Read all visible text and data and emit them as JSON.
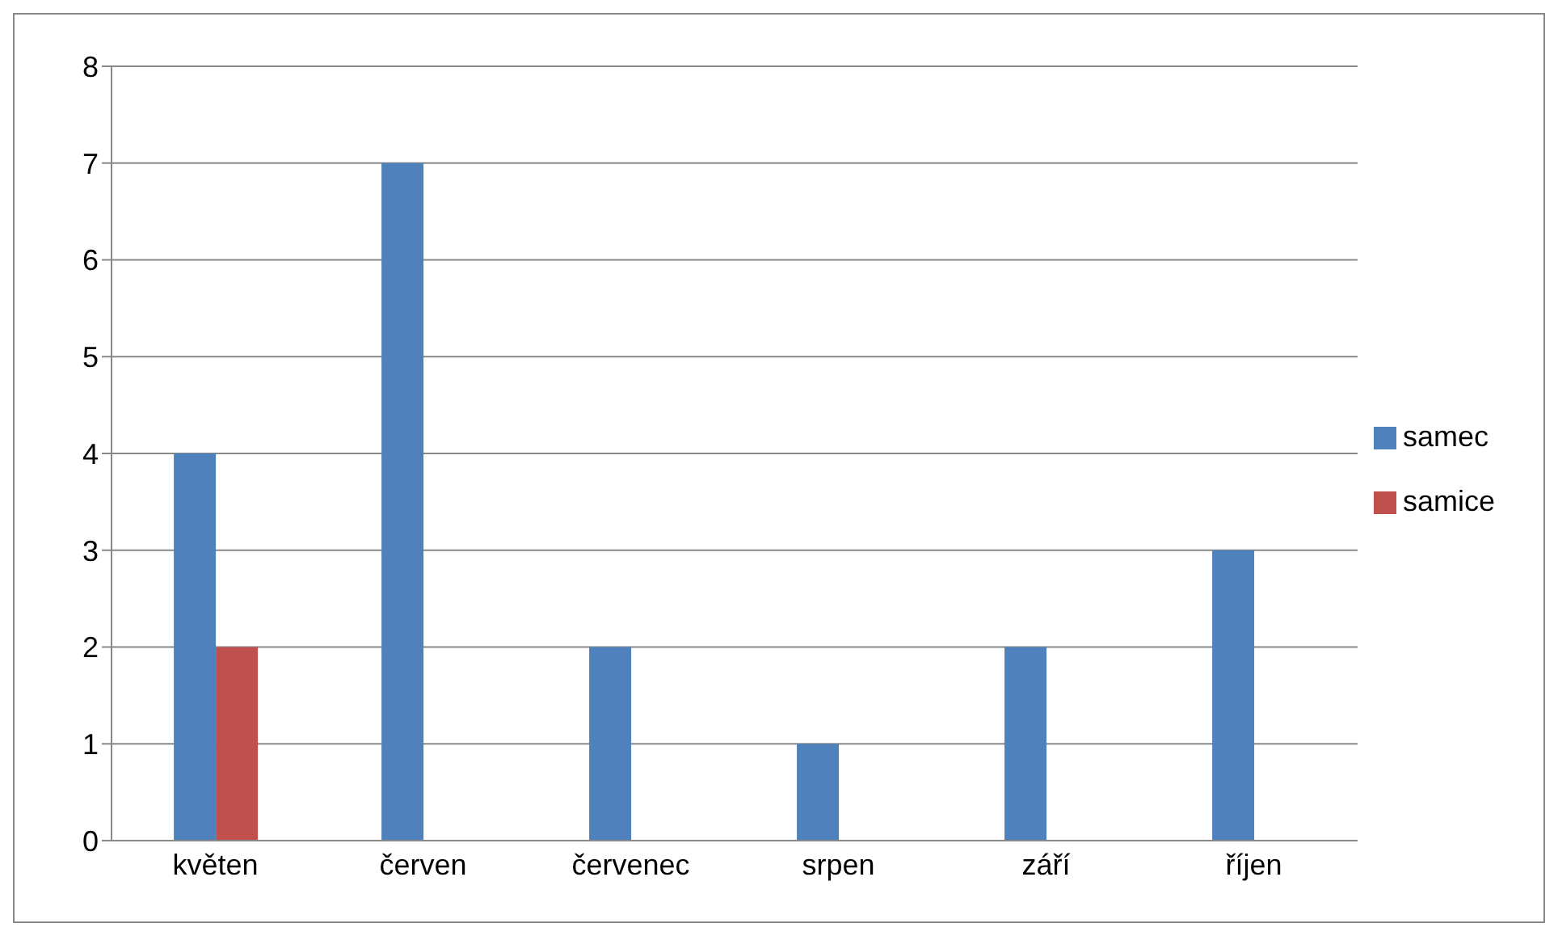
{
  "chart_data": {
    "type": "bar",
    "categories": [
      "květen",
      "červen",
      "červenec",
      "srpen",
      "září",
      "říjen"
    ],
    "series": [
      {
        "name": "samec",
        "color": "#4f81bd",
        "values": [
          4,
          7,
          2,
          1,
          2,
          3
        ]
      },
      {
        "name": "samice",
        "color": "#c0504d",
        "values": [
          2,
          0,
          0,
          0,
          0,
          0
        ]
      }
    ],
    "ylim": [
      0,
      8
    ],
    "yticks": [
      0,
      1,
      2,
      3,
      4,
      5,
      6,
      7,
      8
    ],
    "grid": "y",
    "legend": "right"
  }
}
